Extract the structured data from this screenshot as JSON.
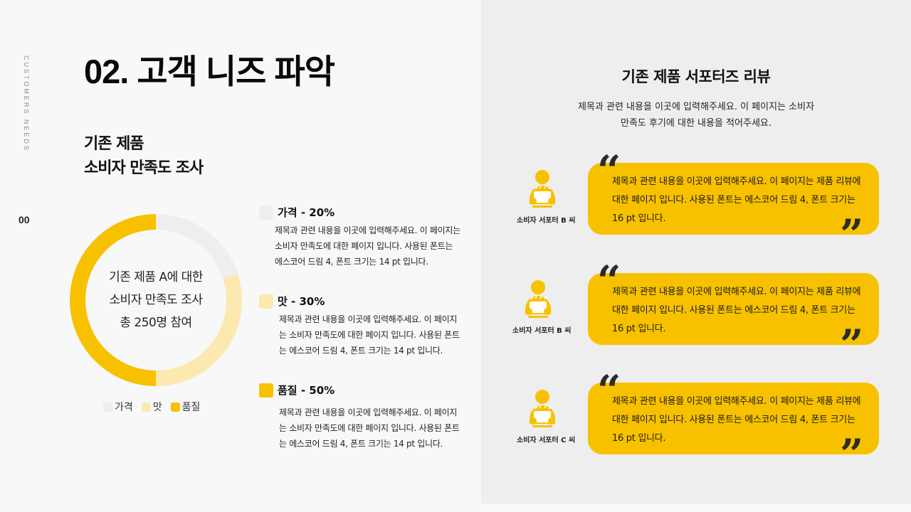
{
  "side_label": "CUSTOMERS NEEDS",
  "page_number": "00",
  "header": {
    "title": "02. 고객 니즈 파악"
  },
  "left": {
    "subtitle_line1": "기존 제품",
    "subtitle_line2": "소비자 만족도 조사",
    "donut_center": [
      "기존 제품 A에 대한",
      "소비자 만족도 조사",
      "총 250명 참여"
    ],
    "legend": [
      {
        "label": "가격",
        "color": "#eeeeee"
      },
      {
        "label": "맛",
        "color": "#fbe9b0"
      },
      {
        "label": "품질",
        "color": "#f8c100"
      }
    ],
    "categories": [
      {
        "title": "가격 - 20%",
        "color": "#eeeeee",
        "text": "제목과 관련 내용을 이곳에 입력해주세요. 이 페이지는 소비자 만족도에 대한 페이지 입니다. 사용된 폰트는 에스코어 드림 4, 폰트 크기는 14 pt 입니다."
      },
      {
        "title": "맛 - 30%",
        "color": "#fbe9b0",
        "text": "제목과 관련 내용을 이곳에 입력해주세요. 이 페이지는 소비자 만족도에 대한 페이지 입니다. 사용된 폰트는 에스코어 드림 4, 폰트 크기는 14 pt 입니다."
      },
      {
        "title": "품질 - 50%",
        "color": "#f8c100",
        "text": "제목과 관련 내용을 이곳에 입력해주세요. 이 페이지는 소비자 만족도에 대한 페이지 입니다. 사용된 폰트는 에스코어 드림 4, 폰트 크기는 14 pt 입니다."
      }
    ]
  },
  "right": {
    "title": "기존 제품 서포터즈 리뷰",
    "desc_line1": "제목과 관련 내용을 이곳에 입력해주세요. 이 페이지는 소비자",
    "desc_line2": "만족도 후기에 대한 내용을 적어주세요.",
    "reviews": [
      {
        "name": "소비자 서포터 B 씨",
        "text": "제목과 관련 내용을 이곳에 입력해주세요. 이 페이지는 제품 리뷰에 대한 페이지 입니다. 사용된 폰트는 에스코어 드림 4, 폰트 크기는 16 pt 입니다.",
        "icon": "person-reading-icon"
      },
      {
        "name": "소비자 서포터 B 씨",
        "text": "제목과 관련 내용을 이곳에 입력해주세요. 이 페이지는 제품 리뷰에 대한 페이지 입니다. 사용된 폰트는 에스코어 드림 4, 폰트 크기는 16 pt 입니다.",
        "icon": "person-reading-icon"
      },
      {
        "name": "소비자 서포터 C 씨",
        "text": "제목과 관련 내용을 이곳에 입력해주세요. 이 페이지는 제품 리뷰에 대한 페이지 입니다. 사용된 폰트는 에스코어 드림 4, 폰트 크기는 16 pt 입니다.",
        "icon": "person-reading-icon"
      }
    ],
    "quote_open": "“",
    "quote_close": "”"
  },
  "colors": {
    "accent": "#f8c100",
    "accent_light": "#fbe9b0",
    "neutral": "#eeeeee",
    "quote": "#2b2b2b"
  },
  "chart_data": {
    "type": "pie",
    "variant": "donut",
    "title": "기존 제품 A에 대한 소비자 만족도 조사",
    "subtitle": "총 250명 참여",
    "categories": [
      "가격",
      "맛",
      "품질"
    ],
    "values": [
      20,
      30,
      50
    ],
    "unit": "%",
    "colors": [
      "#eeeeee",
      "#fbe9b0",
      "#f8c100"
    ],
    "legend_position": "bottom",
    "start_angle_deg": 0,
    "direction": "clockwise"
  }
}
